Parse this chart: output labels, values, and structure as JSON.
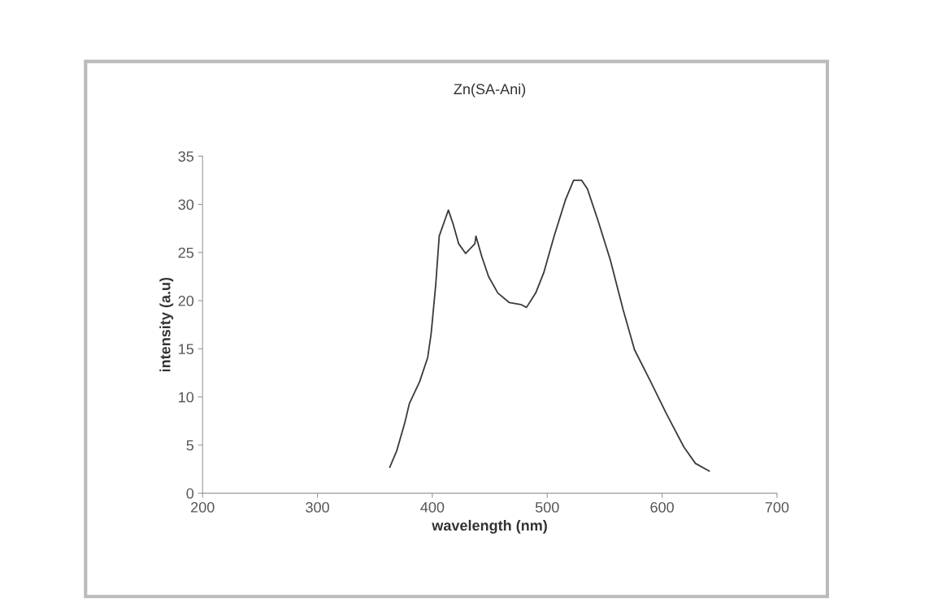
{
  "chart_data": {
    "type": "line",
    "title": "Zn(SA-Ani)",
    "xlabel": "wavelength (nm)",
    "ylabel": "intensity (a.u)",
    "xlim": [
      200,
      700
    ],
    "xticks": [
      200,
      300,
      400,
      500,
      600,
      700
    ],
    "ylim": [
      0,
      35
    ],
    "yticks": [
      0,
      5,
      10,
      15,
      20,
      25,
      30,
      35
    ],
    "grid": false,
    "marker": "none",
    "line_style": "solid",
    "series": [
      {
        "color": "#3a3a3a",
        "x": [
          363,
          369,
          376,
          380,
          389,
          396,
          399,
          403,
          406,
          411,
          414,
          418,
          423,
          429,
          437,
          438,
          443,
          449,
          457,
          467,
          477,
          482,
          490,
          497,
          506,
          516,
          523,
          530,
          535,
          544,
          555,
          566,
          576,
          590,
          604,
          619,
          629,
          641
        ],
        "values": [
          2.7,
          4.4,
          7.3,
          9.3,
          11.6,
          14.1,
          16.6,
          21.7,
          26.7,
          28.4,
          29.4,
          28.0,
          25.9,
          24.9,
          25.9,
          26.7,
          24.6,
          22.5,
          20.8,
          19.8,
          19.6,
          19.3,
          20.8,
          22.9,
          26.7,
          30.5,
          32.5,
          32.5,
          31.6,
          28.4,
          24.2,
          19.1,
          14.9,
          11.6,
          8.2,
          4.8,
          3.1,
          2.3
        ]
      }
    ]
  }
}
